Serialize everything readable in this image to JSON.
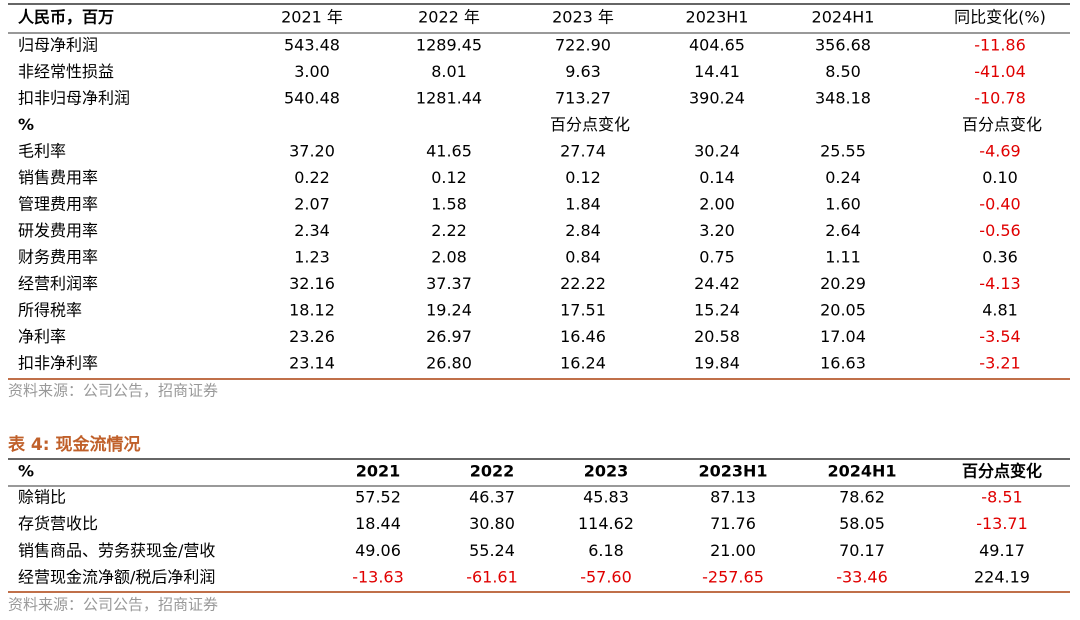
{
  "table1": {
    "header": [
      "人民币，百万",
      "2021 年",
      "2022 年",
      "2023 年",
      "2023H1",
      "2024H1",
      "同比变化(%)"
    ],
    "rows_a": [
      [
        "归母净利润",
        "543.48",
        "1289.45",
        "722.90",
        "404.65",
        "356.68",
        "-11.86"
      ],
      [
        "非经常性损益",
        "3.00",
        "8.01",
        "9.63",
        "14.41",
        "8.50",
        "-41.04"
      ],
      [
        "扣非归母净利润",
        "540.48",
        "1281.44",
        "713.27",
        "390.24",
        "348.18",
        "-10.78"
      ]
    ],
    "subheader": {
      "label": "%",
      "note_2023": "百分点变化",
      "note_change": "百分点变化"
    },
    "rows_b": [
      [
        "毛利率",
        "37.20",
        "41.65",
        "27.74",
        "30.24",
        "25.55",
        "-4.69"
      ],
      [
        "销售费用率",
        "0.22",
        "0.12",
        "0.12",
        "0.14",
        "0.24",
        "0.10"
      ],
      [
        "管理费用率",
        "2.07",
        "1.58",
        "1.84",
        "2.00",
        "1.60",
        "-0.40"
      ],
      [
        "研发费用率",
        "2.34",
        "2.22",
        "2.84",
        "3.20",
        "2.64",
        "-0.56"
      ],
      [
        "财务费用率",
        "1.23",
        "2.08",
        "0.84",
        "0.75",
        "1.11",
        "0.36"
      ],
      [
        "经营利润率",
        "32.16",
        "37.37",
        "22.22",
        "24.42",
        "20.29",
        "-4.13"
      ],
      [
        "所得税率",
        "18.12",
        "19.24",
        "17.51",
        "15.24",
        "20.05",
        "4.81"
      ],
      [
        "净利率",
        "23.26",
        "26.97",
        "16.46",
        "20.58",
        "17.04",
        "-3.54"
      ],
      [
        "扣非净利率",
        "23.14",
        "26.80",
        "16.24",
        "19.84",
        "16.63",
        "-3.21"
      ]
    ],
    "source": "资料来源：公司公告，招商证券"
  },
  "table2": {
    "title": "表 4:  现金流情况",
    "header": [
      "%",
      "2021",
      "2022",
      "2023",
      "2023H1",
      "2024H1",
      "百分点变化"
    ],
    "rows": [
      [
        "赊销比",
        "57.52",
        "46.37",
        "45.83",
        "87.13",
        "78.62",
        "-8.51"
      ],
      [
        "存货营收比",
        "18.44",
        "30.80",
        "114.62",
        "71.76",
        "58.05",
        "-13.71"
      ],
      [
        "销售商品、劳务获现金/营收",
        "49.06",
        "55.24",
        "6.18",
        "21.00",
        "70.17",
        "49.17"
      ],
      [
        "经营现金流净额/税后净利润",
        "-13.63",
        "-61.61",
        "-57.60",
        "-257.65",
        "-33.46",
        "224.19"
      ]
    ],
    "source": "资料来源：公司公告，招商证券"
  }
}
